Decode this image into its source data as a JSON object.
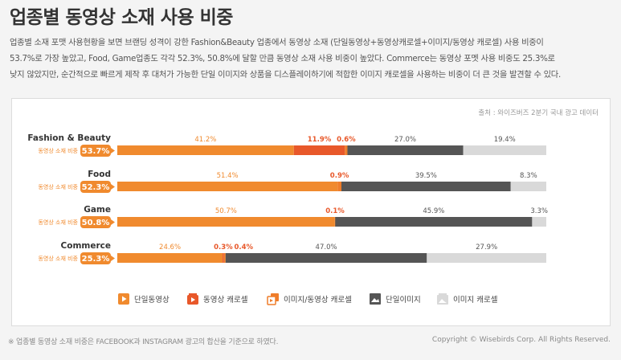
{
  "title": "업종별 동영상 소재 사용 비중",
  "intro_lines": [
    "업종별 소재 포맷 사용현황을 보면 브랜딩 성격이 강한 Fashion&Beauty 업종에서 동영상 소재 (단일동영상+동영상캐로셀+이미지/동영상 캐로셀) 사용 비중이",
    "53.7%로 가장 높았고, Food, Game업종도 각각 52.3%, 50.8%에 달할 만큼 동영상 소재 사용 비중이 높았다. Commerce는 동영상 포멧 사용 비중도 25.3%로",
    "낮지 않았지만, 순간적으로 빠르게 제작 후 대처가 가능한 단일 이미지와 상품을 디스플레이하기에 적합한 이미지 캐로셀을 사용하는 비중이 더 큰 것을 발견할 수 있다."
  ],
  "footnote": "※ 업종별 동영상 소재 비중은 FACEBOOK과 INSTAGRAM 광고의 합산을 기준으로 하였다.",
  "copyright": "Copyright © Wisebirds Corp. All Rights Reserved.",
  "colors": {
    "video": "#f08a2e",
    "video_carousel": "#e8582a",
    "image_video_carousel": "#ef7d2a",
    "single_image": "#555555",
    "image_carousel": "#d9d9d9",
    "badge": "#f08a2e"
  },
  "chart_data": {
    "type": "bar",
    "orientation": "horizontal",
    "stacked": true,
    "source": "출처 : 와이즈버즈 2분기 국내 광고 데이터",
    "categories": [
      "Fashion & Beauty",
      "Food",
      "Game",
      "Commerce"
    ],
    "video_share_label": "동영상 소재 비중",
    "video_share": [
      53.7,
      52.3,
      50.8,
      25.3
    ],
    "xlim": [
      0,
      100
    ],
    "legend_position": "bottom",
    "series": [
      {
        "name": "단일동영상",
        "values": [
          41.2,
          51.4,
          50.7,
          24.6
        ],
        "labels": [
          "41.2%",
          "51.4%",
          "50.7%",
          "24.6%"
        ]
      },
      {
        "name": "동영상 캐로셀",
        "values": [
          11.9,
          0,
          0,
          0.3
        ],
        "labels": [
          "11.9%",
          "",
          "",
          "0.3%"
        ]
      },
      {
        "name": "이미지/동영상 캐로셀",
        "values": [
          0.6,
          0.9,
          0.1,
          0.4
        ],
        "labels": [
          "0.6%",
          "0.9%",
          "0.1%",
          "0.4%"
        ]
      },
      {
        "name": "단일이미지",
        "values": [
          27.0,
          39.5,
          45.9,
          47.0
        ],
        "labels": [
          "27.0%",
          "39.5%",
          "45.9%",
          "47.0%"
        ]
      },
      {
        "name": "이미지 캐로셀",
        "values": [
          19.4,
          8.3,
          3.3,
          27.9
        ],
        "labels": [
          "19.4%",
          "8.3%",
          "3.3%",
          "27.9%"
        ]
      }
    ]
  }
}
